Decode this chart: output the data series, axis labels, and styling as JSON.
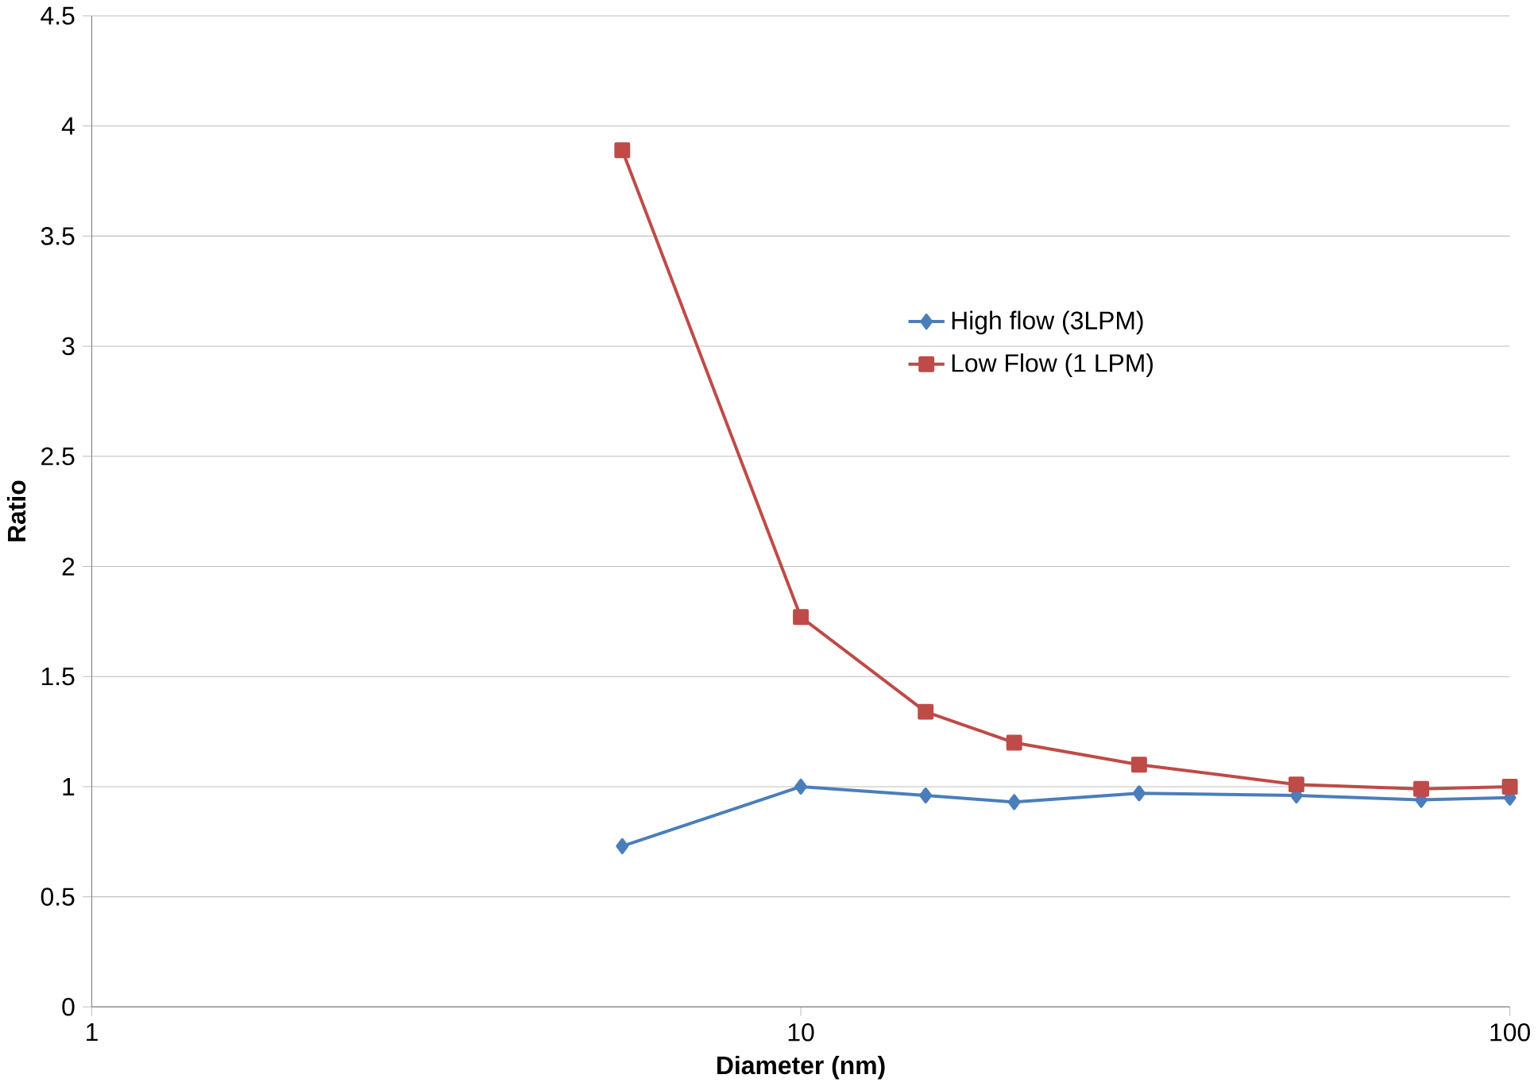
{
  "chart_data": {
    "type": "line",
    "xlabel": "Diameter (nm)",
    "ylabel": "Ratio",
    "log": "x",
    "x": [
      5.6,
      10,
      15,
      20,
      30,
      50,
      75,
      100
    ],
    "series": [
      {
        "name": "High flow (3LPM)",
        "color": "#4a7ebb",
        "marker": "diamond",
        "values": [
          0.73,
          1.0,
          0.96,
          0.93,
          0.97,
          0.96,
          0.94,
          0.95
        ]
      },
      {
        "name": "Low Flow (1 LPM)",
        "color": "#be4b48",
        "marker": "square",
        "values": [
          3.89,
          1.77,
          1.34,
          1.2,
          1.1,
          1.01,
          0.99,
          1.0
        ]
      }
    ],
    "xlim": [
      1,
      100
    ],
    "xticks": [
      1,
      10,
      100
    ],
    "ylim": [
      0,
      4.5
    ],
    "yticks": [
      0,
      0.5,
      1,
      1.5,
      2,
      2.5,
      3,
      3.5,
      4,
      4.5
    ],
    "grid": "y",
    "legend": "right"
  }
}
